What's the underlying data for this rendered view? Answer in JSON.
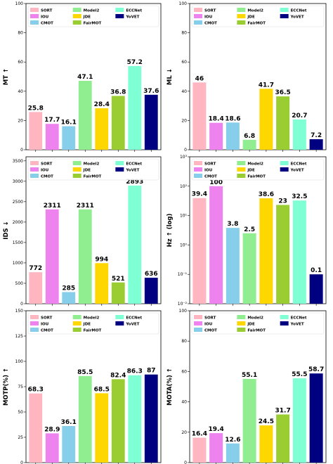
{
  "chart_data": [
    {
      "type": "bar",
      "ylabel": "MT ↑",
      "ylim": [
        0,
        100
      ],
      "yticks": [
        0,
        20,
        40,
        60,
        80,
        100
      ],
      "tick_labels": [
        "0",
        "20",
        "40",
        "60",
        "80",
        "100"
      ],
      "value_labels": [
        "25.8",
        "17.7",
        "16.1",
        "47.1",
        "28.4",
        "36.8",
        "57.2",
        "37.6"
      ],
      "values": [
        25.8,
        17.7,
        16.1,
        47.1,
        28.4,
        36.8,
        57.2,
        37.6
      ],
      "legend": "top"
    },
    {
      "type": "bar",
      "ylabel": "ML ↓",
      "ylim": [
        0,
        100
      ],
      "yticks": [
        0,
        20,
        40,
        60,
        80,
        100
      ],
      "tick_labels": [
        "0",
        "20",
        "40",
        "60",
        "80",
        "100"
      ],
      "value_labels": [
        "46",
        "18.4",
        "18.6",
        "6.8",
        "41.7",
        "36.5",
        "20.7",
        "7.2"
      ],
      "values": [
        46,
        18.4,
        18.6,
        6.8,
        41.7,
        36.5,
        20.7,
        7.2
      ],
      "legend": "top"
    },
    {
      "type": "bar",
      "ylabel": "IDS ↓",
      "ylim": [
        0,
        3600
      ],
      "yticks": [
        0,
        500,
        1000,
        1500,
        2000,
        2500,
        3000,
        3500
      ],
      "tick_labels": [
        "0",
        "500",
        "1000",
        "1500",
        "2000",
        "2500",
        "3000",
        "3500"
      ],
      "value_labels": [
        "772",
        "2311",
        "285",
        "2311",
        "994",
        "521",
        "2893",
        "636"
      ],
      "values": [
        772,
        2311,
        285,
        2311,
        994,
        521,
        2893,
        636
      ],
      "legend": "top"
    },
    {
      "type": "bar",
      "ylabel": "Hz ↑ (log)",
      "log": true,
      "ylim": [
        0.01,
        1000
      ],
      "yticks": [
        0.01,
        0.1,
        1,
        10,
        100,
        1000
      ],
      "tick_labels": [
        "10⁻²",
        "10⁻¹",
        "10⁰",
        "10¹",
        "10²",
        "10³"
      ],
      "value_labels": [
        "39.4",
        "100",
        "3.8",
        "2.5",
        "38.6",
        "23",
        "32.5",
        "0.1"
      ],
      "values": [
        39.4,
        100,
        3.8,
        2.5,
        38.6,
        23,
        32.5,
        0.1
      ],
      "legend": "top"
    },
    {
      "type": "bar",
      "ylabel": "MOTP(%) ↑",
      "ylim": [
        0,
        150
      ],
      "yticks": [
        0,
        25,
        50,
        75,
        100,
        125,
        150
      ],
      "tick_labels": [
        "0",
        "25",
        "50",
        "75",
        "100",
        "125",
        "150"
      ],
      "value_labels": [
        "68.3",
        "28.9",
        "36.1",
        "85.5",
        "68.5",
        "82.4",
        "86.3",
        "87"
      ],
      "values": [
        68.3,
        28.9,
        36.1,
        85.5,
        68.5,
        82.4,
        86.3,
        87
      ],
      "legend": "top"
    },
    {
      "type": "bar",
      "ylabel": "MOTA(%) ↑",
      "ylim": [
        0,
        100
      ],
      "yticks": [
        0,
        20,
        40,
        60,
        80,
        100
      ],
      "tick_labels": [
        "0",
        "20",
        "40",
        "60",
        "80",
        "100"
      ],
      "value_labels": [
        "16.4",
        "19.4",
        "12.6",
        "55.1",
        "24.5",
        "31.7",
        "55.5",
        "58.7"
      ],
      "values": [
        16.4,
        19.4,
        12.6,
        55.1,
        24.5,
        31.7,
        55.5,
        58.7
      ],
      "legend": "top"
    }
  ],
  "methods": [
    "SORT",
    "IOU",
    "CMOT",
    "Model2",
    "JDE",
    "FairMOT",
    "ECCNet",
    "YoVET"
  ],
  "colors": [
    "#ffb6c1",
    "#ee82ee",
    "#87ceeb",
    "#90ee90",
    "#ffd700",
    "#9acd32",
    "#7fffd4",
    "#000080"
  ]
}
